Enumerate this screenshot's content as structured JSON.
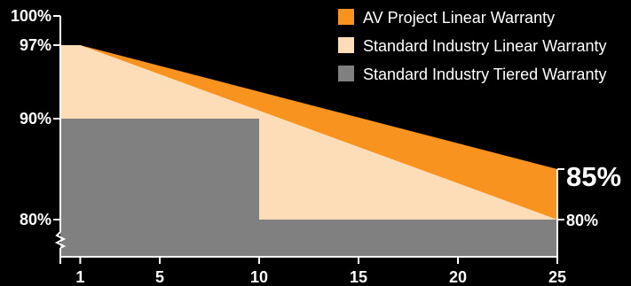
{
  "chart_data": {
    "type": "area",
    "x_ticks": [
      1,
      5,
      10,
      15,
      20,
      25
    ],
    "y_ticks": [
      "100%",
      "97%",
      "90%",
      "80%"
    ],
    "xlim": [
      0,
      25
    ],
    "ylim": [
      80,
      100
    ],
    "y_axis_break": true,
    "grid": false,
    "legend_position": "top-right",
    "series": [
      {
        "name": "AV Project Linear Warranty",
        "color": "#f7931e",
        "x": [
          0,
          1,
          25
        ],
        "y": [
          97,
          97,
          85
        ]
      },
      {
        "name": "Standard Industry Linear Warranty",
        "color": "#fddcb8",
        "x": [
          0,
          1,
          25
        ],
        "y": [
          97,
          97,
          80
        ]
      },
      {
        "name": "Standard Industry Tiered Warranty",
        "color": "#808080",
        "x": [
          0,
          10,
          10,
          25
        ],
        "y": [
          90,
          90,
          80,
          80
        ]
      }
    ],
    "end_labels": [
      {
        "label": "85%",
        "x": 25,
        "y": 85
      },
      {
        "label": "80%",
        "x": 25,
        "y": 80
      }
    ]
  }
}
